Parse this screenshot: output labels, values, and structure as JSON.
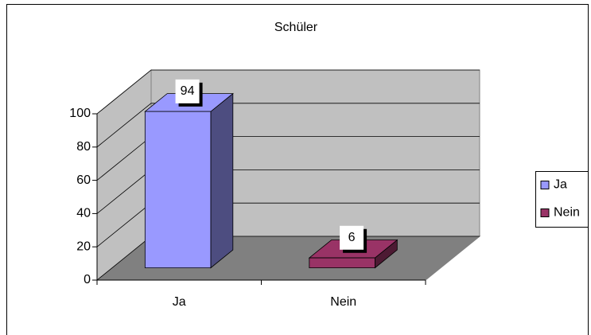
{
  "chart_data": {
    "type": "bar",
    "title": "Schüler",
    "categories": [
      "Ja",
      "Nein"
    ],
    "values": [
      94,
      6
    ],
    "colors": [
      "#9999ff",
      "#993366"
    ],
    "ylim": [
      0,
      100
    ],
    "yticks": [
      0,
      20,
      40,
      60,
      80,
      100
    ],
    "grid": true,
    "legend": "right",
    "data_labels": true
  }
}
